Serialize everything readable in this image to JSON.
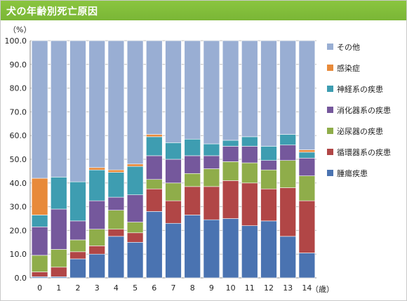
{
  "header": {
    "title": "犬の年齢別死亡原因"
  },
  "chart_data": {
    "type": "bar",
    "stacked": true,
    "title": "犬の年齢別死亡原因",
    "ylabel": "（%）",
    "xlabel": "（歳）",
    "ylim": [
      0,
      100
    ],
    "yticks": [
      "0.0",
      "10.0",
      "20.0",
      "30.0",
      "40.0",
      "50.0",
      "60.0",
      "70.0",
      "80.0",
      "90.0",
      "100.0"
    ],
    "grid": true,
    "legend_position": "right",
    "categories": [
      "0",
      "1",
      "2",
      "3",
      "4",
      "5",
      "6",
      "7",
      "8",
      "9",
      "10",
      "11",
      "12",
      "13",
      "14"
    ],
    "series": [
      {
        "name": "腫瘍疾患",
        "color": "#4a73b1",
        "values": [
          0.5,
          0.5,
          8,
          10,
          17.5,
          15,
          28,
          23,
          26.5,
          24.5,
          25,
          22,
          24,
          17.5,
          10.5
        ]
      },
      {
        "name": "循環器系の疾患",
        "color": "#b14646",
        "values": [
          2,
          4,
          3,
          3.5,
          3,
          4,
          9.5,
          9.5,
          12,
          14,
          16,
          18,
          13.5,
          20.5,
          22
        ]
      },
      {
        "name": "泌尿器の疾患",
        "color": "#8fad4a",
        "values": [
          7,
          7.5,
          5,
          7,
          8,
          4.5,
          4,
          7.5,
          5.5,
          7.5,
          8,
          8.5,
          8,
          11.5,
          10.5
        ]
      },
      {
        "name": "消化器系の疾患",
        "color": "#75589c",
        "values": [
          12,
          17,
          8,
          12,
          5.5,
          11.5,
          10,
          10,
          7.5,
          5.5,
          6.5,
          7,
          4,
          6.5,
          7.5
        ]
      },
      {
        "name": "神経系の疾患",
        "color": "#3e9db1",
        "values": [
          5,
          13.5,
          16.5,
          13,
          10.5,
          12,
          8,
          7,
          7,
          5,
          2.5,
          4,
          6,
          4.5,
          2.5
        ]
      },
      {
        "name": "感染症",
        "color": "#e88a3a",
        "values": [
          15.5,
          0,
          0,
          1,
          1,
          1,
          1,
          0,
          0,
          0,
          0,
          0,
          0,
          0,
          1
        ]
      },
      {
        "name": "その他",
        "color": "#99aed3",
        "values": [
          58,
          57.5,
          59.5,
          53.5,
          54.5,
          52,
          39.5,
          43,
          41.5,
          43.5,
          42,
          40.5,
          44.5,
          39.5,
          46
        ]
      }
    ],
    "legend_order": [
      "その他",
      "感染症",
      "神経系の疾患",
      "消化器系の疾患",
      "泌尿器の疾患",
      "循環器系の疾患",
      "腫瘍疾患"
    ]
  }
}
